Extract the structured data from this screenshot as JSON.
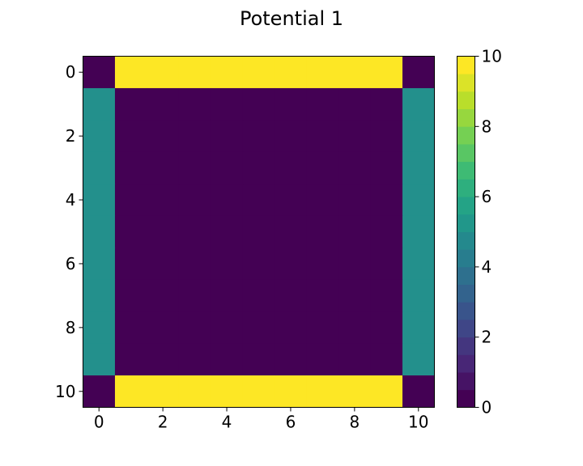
{
  "chart_data": {
    "type": "heatmap",
    "title": "Potential 1",
    "xlabel": "",
    "ylabel": "",
    "colormap": "viridis",
    "vmin": 0,
    "vmax": 10,
    "x_ticks": [
      "0",
      "2",
      "4",
      "6",
      "8",
      "10"
    ],
    "y_ticks": [
      "0",
      "2",
      "4",
      "6",
      "8",
      "10"
    ],
    "colorbar_ticks": [
      "0",
      "2",
      "4",
      "6",
      "8",
      "10"
    ],
    "colorbar_levels": 20,
    "grid": false,
    "values": [
      [
        0,
        10,
        10,
        10,
        10,
        10,
        10,
        10,
        10,
        10,
        0
      ],
      [
        5,
        0,
        0,
        0,
        0,
        0,
        0,
        0,
        0,
        0,
        5
      ],
      [
        5,
        0,
        0,
        0,
        0,
        0,
        0,
        0,
        0,
        0,
        5
      ],
      [
        5,
        0,
        0,
        0,
        0,
        0,
        0,
        0,
        0,
        0,
        5
      ],
      [
        5,
        0,
        0,
        0,
        0,
        0,
        0,
        0,
        0,
        0,
        5
      ],
      [
        5,
        0,
        0,
        0,
        0,
        0,
        0,
        0,
        0,
        0,
        5
      ],
      [
        5,
        0,
        0,
        0,
        0,
        0,
        0,
        0,
        0,
        0,
        5
      ],
      [
        5,
        0,
        0,
        0,
        0,
        0,
        0,
        0,
        0,
        0,
        5
      ],
      [
        5,
        0,
        0,
        0,
        0,
        0,
        0,
        0,
        0,
        0,
        5
      ],
      [
        5,
        0,
        0,
        0,
        0,
        0,
        0,
        0,
        0,
        0,
        5
      ],
      [
        0,
        10,
        10,
        10,
        10,
        10,
        10,
        10,
        10,
        10,
        0
      ]
    ]
  }
}
